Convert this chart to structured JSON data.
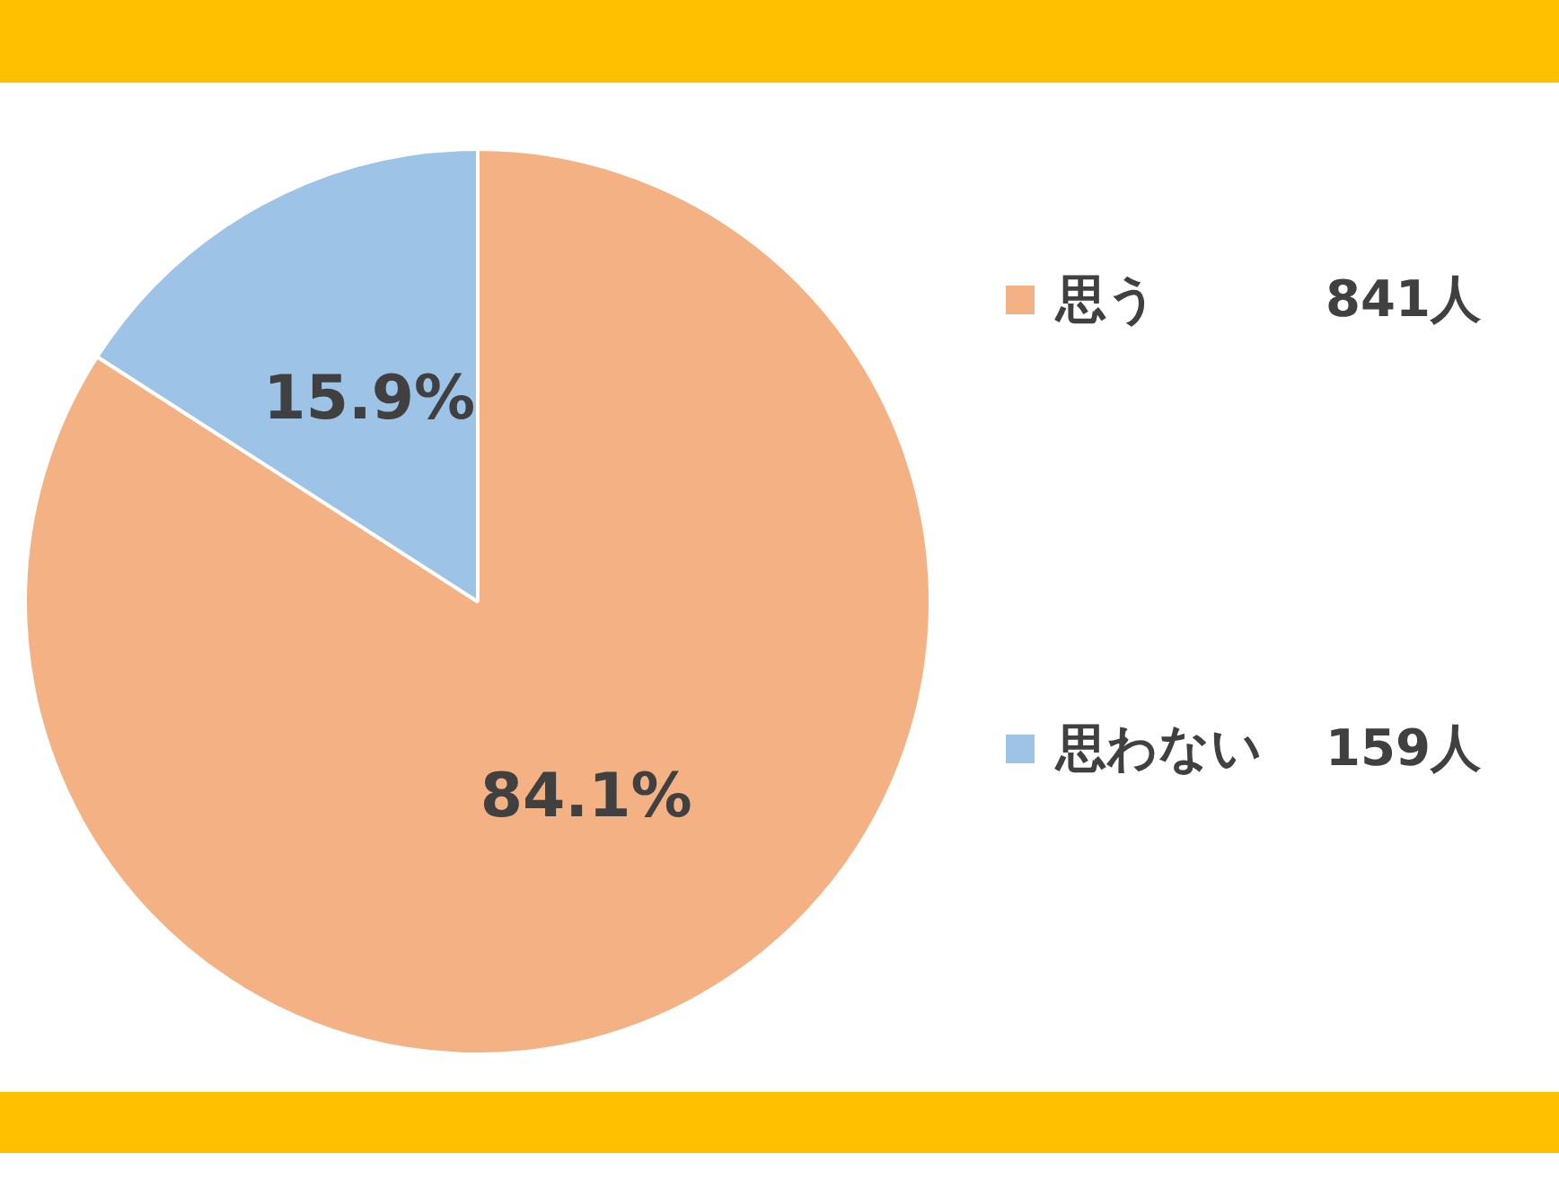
{
  "chart_data": {
    "type": "pie",
    "categories": [
      "思う",
      "思わない"
    ],
    "values": [
      84.1,
      15.9
    ],
    "value_labels": [
      "84.1%",
      "15.9%"
    ],
    "colors": [
      "#f4b183",
      "#9dc3e6"
    ],
    "legend": "right",
    "annotations": [
      "841人",
      "159人"
    ]
  }
}
